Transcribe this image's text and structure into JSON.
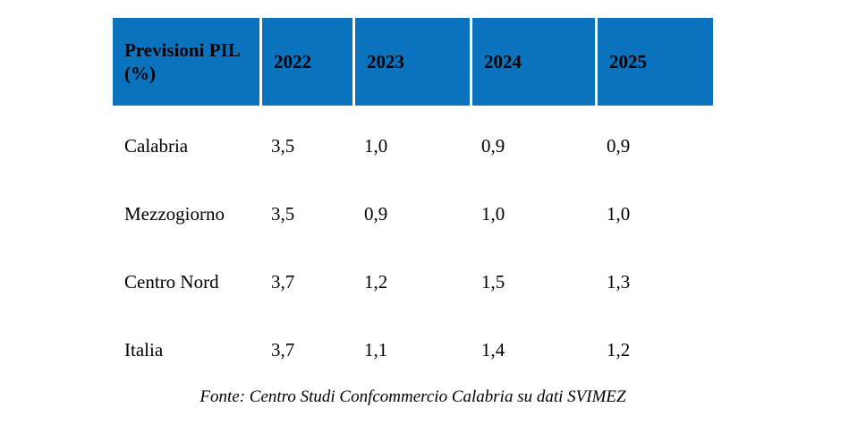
{
  "chart_data": {
    "type": "table",
    "title": "Previsioni PIL (%)",
    "columns": [
      "2022",
      "2023",
      "2024",
      "2025"
    ],
    "rows": [
      {
        "label": "Calabria",
        "values": [
          "3,5",
          "1,0",
          "0,9",
          "0,9"
        ]
      },
      {
        "label": "Mezzogiorno",
        "values": [
          "3,5",
          "0,9",
          "1,0",
          "1,0"
        ]
      },
      {
        "label": "Centro Nord",
        "values": [
          "3,7",
          "1,2",
          "1,5",
          "1,3"
        ]
      },
      {
        "label": "Italia",
        "values": [
          "3,7",
          "1,1",
          "1,4",
          "1,2"
        ]
      }
    ],
    "series": [
      {
        "name": "Calabria",
        "values": [
          3.5,
          1.0,
          0.9,
          0.9
        ]
      },
      {
        "name": "Mezzogiorno",
        "values": [
          3.5,
          0.9,
          1.0,
          1.0
        ]
      },
      {
        "name": "Centro Nord",
        "values": [
          3.7,
          1.2,
          1.5,
          1.3
        ]
      },
      {
        "name": "Italia",
        "values": [
          3.7,
          1.1,
          1.4,
          1.2
        ]
      }
    ],
    "source": "Fonte: Centro Studi Confcommercio Calabria su dati SVIMEZ",
    "colors": {
      "header_bg": "#0B72BE",
      "header_text": "#000000",
      "body_text": "#000000",
      "separator": "#FFFFFF"
    }
  }
}
